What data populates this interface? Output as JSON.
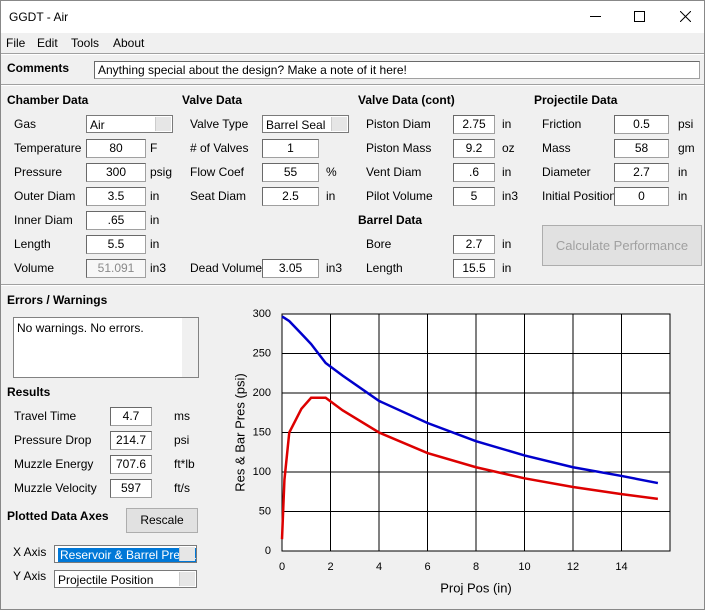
{
  "window": {
    "title": "GGDT - Air"
  },
  "menu": [
    "File",
    "Edit",
    "Tools",
    "About"
  ],
  "comments": {
    "label": "Comments",
    "value": "Anything special about the design?  Make a note of it here!"
  },
  "sections": [
    {
      "heading": "Chamber Data",
      "fields": [
        {
          "label": "Gas",
          "value": "Air"
        },
        {
          "label": "Temperature",
          "value": "80",
          "unit": "F"
        },
        {
          "label": "Pressure",
          "value": "300",
          "unit": "psig"
        },
        {
          "label": "Outer Diam",
          "value": "3.5",
          "unit": "in"
        },
        {
          "label": "Inner Diam",
          "value": ".65",
          "unit": "in"
        },
        {
          "label": "Length",
          "value": "5.5",
          "unit": "in"
        },
        {
          "label": "Volume",
          "value": "51.091",
          "unit": "in3"
        }
      ]
    },
    {
      "heading": "Valve Data",
      "fields": [
        {
          "label": "Valve Type",
          "value": "Barrel Seal"
        },
        {
          "label": "# of Valves",
          "value": "1"
        },
        {
          "label": "Flow Coef",
          "value": "55",
          "unit": "%"
        },
        {
          "label": "Seat Diam",
          "value": "2.5",
          "unit": "in"
        },
        {
          "label": "Dead Volume",
          "value": "3.05",
          "unit": "in3"
        }
      ]
    },
    {
      "heading": "Valve Data (cont)",
      "fields": [
        {
          "label": "Piston Diam",
          "value": "2.75",
          "unit": "in"
        },
        {
          "label": "Piston Mass",
          "value": "9.2",
          "unit": "oz"
        },
        {
          "label": "Vent Diam",
          "value": ".6",
          "unit": "in"
        },
        {
          "label": "Pilot Volume",
          "value": "5",
          "unit": "in3"
        }
      ]
    },
    {
      "heading": "Barrel Data",
      "fields": [
        {
          "label": "Bore",
          "value": "2.7",
          "unit": "in"
        },
        {
          "label": "Length",
          "value": "15.5",
          "unit": "in"
        }
      ]
    },
    {
      "heading": "Projectile Data",
      "fields": [
        {
          "label": "Friction",
          "value": "0.5",
          "unit": "psi"
        },
        {
          "label": "Mass",
          "value": "58",
          "unit": "gm"
        },
        {
          "label": "Diameter",
          "value": "2.7",
          "unit": "in"
        },
        {
          "label": "Initial Position",
          "value": "0",
          "unit": "in"
        }
      ]
    }
  ],
  "calculate_button": "Calculate Performance",
  "errors": {
    "heading": "Errors / Warnings",
    "text": "No warnings.  No errors."
  },
  "results": {
    "heading": "Results",
    "fields": [
      {
        "label": "Travel Time",
        "value": "4.7",
        "unit": "ms"
      },
      {
        "label": "Pressure Drop",
        "value": "214.7",
        "unit": "psi"
      },
      {
        "label": "Muzzle Energy",
        "value": "707.6",
        "unit": "ft*lb"
      },
      {
        "label": "Muzzle Velocity",
        "value": "597",
        "unit": "ft/s"
      }
    ]
  },
  "plot_axes": {
    "heading": "Plotted Data Axes",
    "rescale_button": "Rescale",
    "x_axis": {
      "label": "X Axis",
      "value": "Reservoir & Barrel Pressu"
    },
    "y_axis": {
      "label": "Y Axis",
      "value": "Projectile Position"
    }
  },
  "chart_data": {
    "type": "line",
    "x_label": "Proj Pos (in)",
    "y_label": "Res & Bar Pres (psi)",
    "x": [
      0,
      0.1,
      0.3,
      0.8,
      1.2,
      1.8,
      2.5,
      4,
      6,
      8,
      10,
      12,
      14,
      15.5
    ],
    "series": [
      {
        "color": "#0000cc",
        "values": [
          297,
          295,
          291,
          275,
          262,
          238,
          222,
          190,
          162,
          139,
          121,
          106,
          95,
          86
        ]
      },
      {
        "color": "#dd0000",
        "values": [
          15,
          90,
          150,
          180,
          194,
          194,
          178,
          150,
          124,
          106,
          92,
          81,
          72,
          66
        ]
      }
    ],
    "xlim": [
      0,
      16
    ],
    "xticks": [
      0,
      2,
      4,
      6,
      8,
      10,
      12,
      14
    ],
    "ylim": [
      0,
      300
    ],
    "yticks": [
      0,
      50,
      100,
      150,
      200,
      250,
      300
    ],
    "grid": true
  }
}
